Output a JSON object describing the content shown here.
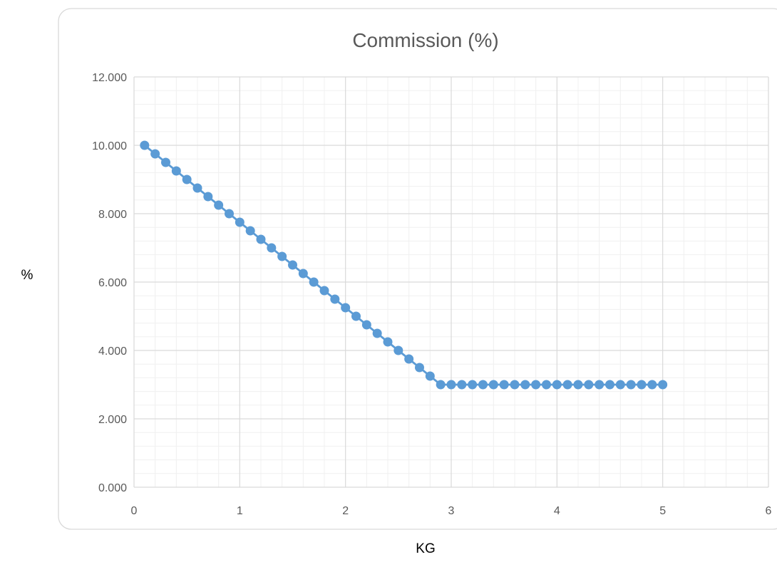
{
  "chart_data": {
    "type": "scatter",
    "title": "Commission (%)",
    "xlabel": "KG",
    "ylabel": "%",
    "xlim": [
      0,
      6
    ],
    "ylim": [
      0,
      12
    ],
    "x_ticks": [
      "0",
      "1",
      "2",
      "3",
      "4",
      "5",
      "6"
    ],
    "y_ticks": [
      "0.000",
      "2.000",
      "4.000",
      "6.000",
      "8.000",
      "10.000",
      "12.000"
    ],
    "grid": true,
    "minor_grid": true,
    "legend": "none",
    "line_connected": true,
    "marker": "circle",
    "series": [
      {
        "color": "#5b9bd5",
        "x": [
          0.1,
          0.2,
          0.3,
          0.4,
          0.5,
          0.6,
          0.7,
          0.8,
          0.9,
          1.0,
          1.1,
          1.2,
          1.3,
          1.4,
          1.5,
          1.6,
          1.7,
          1.8,
          1.9,
          2.0,
          2.1,
          2.2,
          2.3,
          2.4,
          2.5,
          2.6,
          2.7,
          2.8,
          2.9,
          3.0,
          3.1,
          3.2,
          3.3,
          3.4,
          3.5,
          3.6,
          3.7,
          3.8,
          3.9,
          4.0,
          4.1,
          4.2,
          4.3,
          4.4,
          4.5,
          4.6,
          4.7,
          4.8,
          4.9,
          5.0
        ],
        "y": [
          10.0,
          9.75,
          9.5,
          9.25,
          9.0,
          8.75,
          8.5,
          8.25,
          8.0,
          7.75,
          7.5,
          7.25,
          7.0,
          6.75,
          6.5,
          6.25,
          6.0,
          5.75,
          5.5,
          5.25,
          5.0,
          4.75,
          4.5,
          4.25,
          4.0,
          3.75,
          3.5,
          3.25,
          3.0,
          3.0,
          3.0,
          3.0,
          3.0,
          3.0,
          3.0,
          3.0,
          3.0,
          3.0,
          3.0,
          3.0,
          3.0,
          3.0,
          3.0,
          3.0,
          3.0,
          3.0,
          3.0,
          3.0,
          3.0,
          3.0
        ]
      }
    ]
  },
  "colors": {
    "series": "#5b9bd5",
    "major_grid": "#d9d9d9",
    "minor_grid": "#f0f0f0",
    "frame": "#d9d9d9",
    "text": "#595959"
  }
}
